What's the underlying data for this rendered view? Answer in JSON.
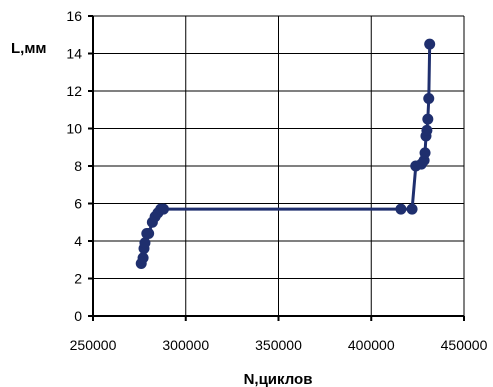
{
  "chart_data": {
    "type": "line",
    "xlabel": "N,циклов",
    "ylabel": "L,мм",
    "xlim": [
      250000,
      450000
    ],
    "ylim": [
      0,
      16
    ],
    "xticks": [
      "250000",
      "300000",
      "350000",
      "400000",
      "450000"
    ],
    "yticks": [
      "0",
      "2",
      "4",
      "6",
      "8",
      "10",
      "12",
      "14",
      "16"
    ],
    "grid": true,
    "series_color": "#1F2F6E",
    "x": [
      276000,
      277000,
      277500,
      278000,
      279000,
      280000,
      282000,
      283500,
      285000,
      286500,
      288000,
      416000,
      422000,
      424000,
      427000,
      428500,
      429000,
      429500,
      430000,
      430500,
      431000,
      431500
    ],
    "y": [
      2.8,
      3.1,
      3.6,
      3.9,
      4.4,
      4.4,
      5.0,
      5.3,
      5.5,
      5.7,
      5.7,
      5.7,
      5.7,
      8.0,
      8.1,
      8.3,
      8.7,
      9.6,
      9.9,
      10.5,
      11.6,
      14.5
    ]
  }
}
